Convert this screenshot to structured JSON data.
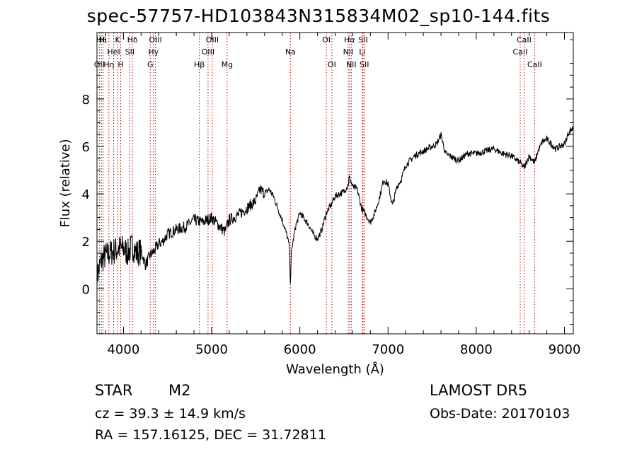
{
  "chart_data": {
    "type": "line",
    "title": "spec-57757-HD103843N315834M02_sp10-144.fits",
    "xlabel": "Wavelength (Å)",
    "ylabel": "Flux (relative)",
    "xlim": [
      3700,
      9100
    ],
    "ylim": [
      -1.9,
      10.8
    ],
    "x_ticks": [
      4000,
      5000,
      6000,
      7000,
      8000,
      9000
    ],
    "y_ticks": [
      0,
      2,
      4,
      6,
      8
    ],
    "grid": false,
    "series": [
      {
        "x": [
          3700,
          3750,
          3800,
          3850,
          3900,
          3950,
          4000,
          4050,
          4100,
          4150,
          4200,
          4250,
          4300,
          4350,
          4400,
          4450,
          4500,
          4600,
          4700,
          4800,
          4900,
          5000,
          5100,
          5150,
          5200,
          5300,
          5400,
          5500,
          5550,
          5600,
          5650,
          5700,
          5750,
          5800,
          5850,
          5880,
          5893,
          5905,
          5950,
          6000,
          6100,
          6150,
          6200,
          6250,
          6300,
          6350,
          6400,
          6450,
          6500,
          6550,
          6560,
          6600,
          6650,
          6700,
          6750,
          6800,
          6850,
          6900,
          6950,
          7000,
          7050,
          7100,
          7150,
          7200,
          7300,
          7400,
          7500,
          7550,
          7600,
          7650,
          7700,
          7800,
          7900,
          8000,
          8100,
          8200,
          8300,
          8400,
          8500,
          8542,
          8600,
          8662,
          8700,
          8750,
          8800,
          8850,
          8900,
          8950,
          9000,
          9050,
          9100
        ],
        "y": [
          0.5,
          1.2,
          1.4,
          1.5,
          1.6,
          1.7,
          1.7,
          1.5,
          1.8,
          1.5,
          1.6,
          1.0,
          1.4,
          1.6,
          1.9,
          2.0,
          2.3,
          2.5,
          2.6,
          2.9,
          2.8,
          3.0,
          2.6,
          2.4,
          2.9,
          3.1,
          3.4,
          3.7,
          4.2,
          4.0,
          4.2,
          3.9,
          3.4,
          2.9,
          2.3,
          1.8,
          0.2,
          1.6,
          2.6,
          3.2,
          2.7,
          2.3,
          2.1,
          2.5,
          3.2,
          3.5,
          3.9,
          4.0,
          4.1,
          4.4,
          4.7,
          4.3,
          4.2,
          3.4,
          3.1,
          2.8,
          3.2,
          3.8,
          4.6,
          4.4,
          3.5,
          4.3,
          4.6,
          5.2,
          5.6,
          5.8,
          6.0,
          6.1,
          6.5,
          5.7,
          5.6,
          5.4,
          5.7,
          5.7,
          5.8,
          5.9,
          5.7,
          5.6,
          5.3,
          5.1,
          5.6,
          5.3,
          5.8,
          6.2,
          6.3,
          6.1,
          5.9,
          6.0,
          6.1,
          6.6,
          6.8
        ]
      }
    ],
    "lines": [
      {
        "x": 3727,
        "label": "OII",
        "row": 2
      },
      {
        "x": 3750,
        "label": "Hθ",
        "row": 0
      },
      {
        "x": 3770,
        "label": "Hι",
        "row": 0
      },
      {
        "x": 3835,
        "label": "Hη",
        "row": 2
      },
      {
        "x": 3889,
        "label": "HeI",
        "row": 1
      },
      {
        "x": 3934,
        "label": "K",
        "row": 0
      },
      {
        "x": 3969,
        "label": "H",
        "row": 2
      },
      {
        "x": 4072,
        "label": "SII",
        "row": 1
      },
      {
        "x": 4102,
        "label": "Hδ",
        "row": 0
      },
      {
        "x": 4304,
        "label": "G",
        "row": 2
      },
      {
        "x": 4340,
        "label": "Hγ",
        "row": 1
      },
      {
        "x": 4363,
        "label": "OIII",
        "row": 0
      },
      {
        "x": 4861,
        "label": "Hβ",
        "row": 2
      },
      {
        "x": 4959,
        "label": "OIII",
        "row": 1
      },
      {
        "x": 5007,
        "label": "OIII",
        "row": 0
      },
      {
        "x": 5175,
        "label": "Mg",
        "row": 2
      },
      {
        "x": 5893,
        "label": "Na",
        "row": 1
      },
      {
        "x": 6300,
        "label": "OI",
        "row": 0
      },
      {
        "x": 6363,
        "label": "OI",
        "row": 2
      },
      {
        "x": 6548,
        "label": "NII",
        "row": 1
      },
      {
        "x": 6563,
        "label": "Hα",
        "row": 0
      },
      {
        "x": 6583,
        "label": "NII",
        "row": 2
      },
      {
        "x": 6708,
        "label": "Li",
        "row": 1
      },
      {
        "x": 6716,
        "label": "SII",
        "row": 0
      },
      {
        "x": 6731,
        "label": "SII",
        "row": 2
      },
      {
        "x": 8498,
        "label": "CaII",
        "row": 1
      },
      {
        "x": 8542,
        "label": "CaII",
        "row": 0
      },
      {
        "x": 8662,
        "label": "CaII",
        "row": 2
      }
    ]
  },
  "info": {
    "class": "STAR",
    "subclass": "M2",
    "cz": "cz = 39.3 ± 14.9 km/s",
    "radec": "RA = 157.16125, DEC =  31.72811",
    "survey": "LAMOST  DR5",
    "obsdate": "Obs-Date: 20170103"
  }
}
